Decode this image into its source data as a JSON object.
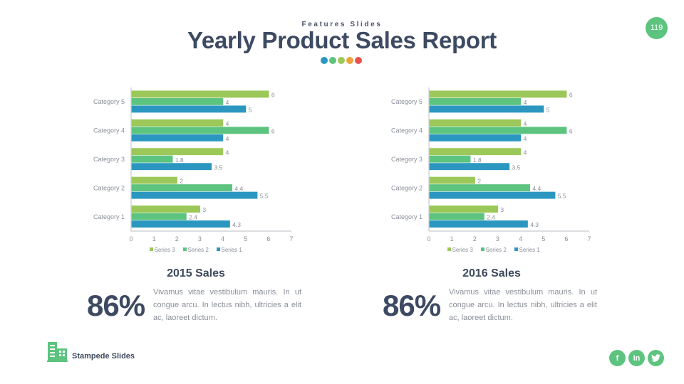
{
  "header": {
    "kicker": "Features Slides",
    "title": "Yearly Product Sales Report",
    "dot_colors": [
      "#2b97c0",
      "#5dc47f",
      "#9cc85a",
      "#f0a23c",
      "#e8524f"
    ]
  },
  "page_number": "119",
  "colors": {
    "series_3": "#9cc85a",
    "series_2": "#5dc47f",
    "series_1": "#2b97c0",
    "accent": "#5dc47f",
    "title": "#3d4a62",
    "muted": "#8a8f98"
  },
  "chart_data": [
    {
      "type": "bar",
      "orientation": "horizontal",
      "title": "",
      "categories": [
        "Category 1",
        "Category 2",
        "Category 3",
        "Category 4",
        "Category 5"
      ],
      "series": [
        {
          "name": "Series 3",
          "values": [
            3,
            2,
            4,
            4,
            6
          ]
        },
        {
          "name": "Series 2",
          "values": [
            2.4,
            4.4,
            1.8,
            6,
            4
          ]
        },
        {
          "name": "Series 1",
          "values": [
            4.3,
            5.5,
            3.5,
            4,
            5
          ]
        }
      ],
      "xlim": [
        0,
        7
      ],
      "x_ticks": [
        "0",
        "1",
        "2",
        "3",
        "4",
        "5",
        "6",
        "7"
      ],
      "xlabel": "",
      "ylabel": "",
      "grid": false,
      "legend": "bottom",
      "data_labels": true
    },
    {
      "type": "bar",
      "orientation": "horizontal",
      "title": "",
      "categories": [
        "Category 1",
        "Category 2",
        "Category 3",
        "Category 4",
        "Category 5"
      ],
      "series": [
        {
          "name": "Series 3",
          "values": [
            3,
            2,
            4,
            4,
            6
          ]
        },
        {
          "name": "Series 2",
          "values": [
            2.4,
            4.4,
            1.8,
            6,
            4
          ]
        },
        {
          "name": "Series 1",
          "values": [
            4.3,
            5.5,
            3.5,
            4,
            5
          ]
        }
      ],
      "xlim": [
        0,
        7
      ],
      "x_ticks": [
        "0",
        "1",
        "2",
        "3",
        "4",
        "5",
        "6",
        "7"
      ],
      "xlabel": "",
      "ylabel": "",
      "grid": false,
      "legend": "bottom",
      "data_labels": true
    }
  ],
  "sections": [
    {
      "title": "2015 Sales",
      "percent": "86%",
      "description": "Vivamus vitae vestibulum mauris. In ut congue arcu. In lectus nibh, ultricies a elit ac, laoreet dictum."
    },
    {
      "title": "2016 Sales",
      "percent": "86%",
      "description": "Vivamus vitae vestibulum mauris. In ut congue arcu. In lectus nibh, ultricies a elit ac, laoreet dictum."
    }
  ],
  "footer": {
    "brand": "Stampede Slides",
    "brand_icon": "building-icon",
    "social": [
      {
        "name": "facebook",
        "glyph": "f"
      },
      {
        "name": "linkedin",
        "glyph": "in"
      },
      {
        "name": "twitter",
        "glyph": "🐦"
      }
    ]
  }
}
